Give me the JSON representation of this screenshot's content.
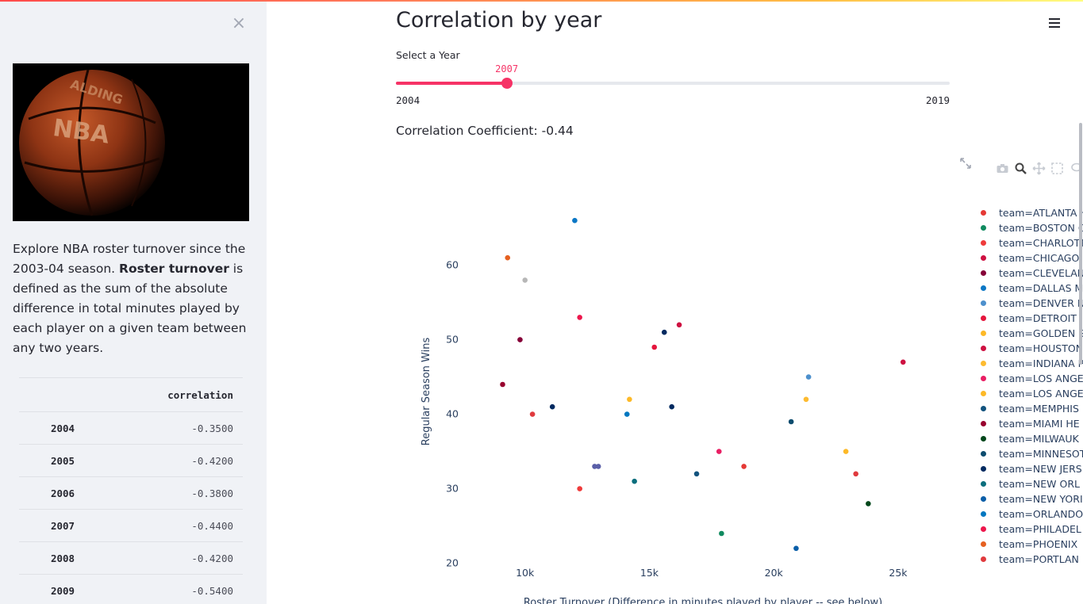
{
  "sidebar": {
    "close_label": "×",
    "intro_part1": "Explore NBA roster turnover since the 2003-04 season. ",
    "intro_bold": "Roster turnover",
    "intro_part2": " is defined as the sum of the absolute difference in total minutes played by each player on a given team between any two years.",
    "table": {
      "column": "correlation",
      "rows": [
        {
          "year": "2004",
          "value": "-0.3500"
        },
        {
          "year": "2005",
          "value": "-0.4200"
        },
        {
          "year": "2006",
          "value": "-0.3800"
        },
        {
          "year": "2007",
          "value": "-0.4400"
        },
        {
          "year": "2008",
          "value": "-0.4200"
        },
        {
          "year": "2009",
          "value": "-0.5400"
        }
      ]
    }
  },
  "main": {
    "title": "Correlation by year",
    "slider": {
      "label": "Select a Year",
      "value": "2007",
      "min": "2004",
      "max": "2019",
      "fraction": 0.2
    },
    "correlation_text": "Correlation Coefficient: -0.44"
  },
  "colors": {
    "accent": "#f63366",
    "sidebar_bg": "#f0f2f6"
  },
  "icons": [
    "close-icon",
    "menu-icon",
    "fullscreen-icon",
    "camera-icon",
    "zoom-icon",
    "pan-icon",
    "box-select-icon",
    "lasso-icon"
  ],
  "chart_data": {
    "type": "scatter",
    "xlabel": "Roster Turnover (Difference in minutes played by player -- see below)",
    "ylabel": "Regular Season Wins",
    "xlim": [
      8000,
      26500
    ],
    "ylim": [
      19,
      69
    ],
    "xticks": [
      {
        "v": 10000,
        "label": "10k"
      },
      {
        "v": 15000,
        "label": "15k"
      },
      {
        "v": 20000,
        "label": "20k"
      },
      {
        "v": 25000,
        "label": "25k"
      }
    ],
    "yticks": [
      20,
      30,
      40,
      50,
      60
    ],
    "grid": false,
    "legend_position": "right",
    "series": [
      {
        "name": "team=ATLANTA H",
        "color": "#e53935",
        "points": [
          [
            18800,
            33
          ]
        ]
      },
      {
        "name": "team=BOSTON C",
        "color": "#0f8a5f",
        "points": [
          [
            17900,
            24
          ]
        ]
      },
      {
        "name": "team=CHARLOTT",
        "color": "#ef3b3b",
        "points": [
          [
            12200,
            30
          ]
        ]
      },
      {
        "name": "team=CHICAGO",
        "color": "#ce1141",
        "points": [
          [
            16200,
            52
          ]
        ]
      },
      {
        "name": "team=CLEVELAN",
        "color": "#860038",
        "points": [
          [
            9800,
            50
          ]
        ]
      },
      {
        "name": "team=DALLAS M",
        "color": "#0b77c5",
        "points": [
          [
            12000,
            66
          ]
        ]
      },
      {
        "name": "team=DENVER N",
        "color": "#4d90cd",
        "points": [
          [
            21400,
            45
          ]
        ]
      },
      {
        "name": "team=DETROIT",
        "color": "#e5163d",
        "points": [
          [
            15200,
            49
          ]
        ]
      },
      {
        "name": "team=GOLDEN S",
        "color": "#fdb927",
        "points": [
          [
            22900,
            35
          ]
        ]
      },
      {
        "name": "team=HOUSTON",
        "color": "#ce1141",
        "points": [
          [
            25200,
            47
          ]
        ]
      },
      {
        "name": "team=INDIANA P",
        "color": "#fdbb30",
        "points": [
          [
            21300,
            42
          ]
        ]
      },
      {
        "name": "team=LOS ANGE",
        "color": "#e91e63",
        "points": [
          [
            17800,
            35
          ]
        ]
      },
      {
        "name": "team=LOS ANGE",
        "color": "#fdb927",
        "points": [
          [
            14200,
            42
          ]
        ]
      },
      {
        "name": "team=MEMPHIS",
        "color": "#12537e",
        "points": [
          [
            16900,
            32
          ]
        ]
      },
      {
        "name": "team=MIAMI HE",
        "color": "#98002e",
        "points": [
          [
            9100,
            44
          ]
        ]
      },
      {
        "name": "team=MILWAUK",
        "color": "#00471b",
        "points": [
          [
            23800,
            28
          ]
        ]
      },
      {
        "name": "team=MINNESOT",
        "color": "#0c4c6e",
        "points": [
          [
            20700,
            39
          ]
        ]
      },
      {
        "name": "team=NEW JERS",
        "color": "#002a60",
        "points": [
          [
            15600,
            51
          ],
          [
            15900,
            41
          ],
          [
            11100,
            41
          ]
        ]
      },
      {
        "name": "team=NEW ORL",
        "color": "#0a6e7d",
        "points": [
          [
            14400,
            31
          ]
        ]
      },
      {
        "name": "team=NEW YORI",
        "color": "#0a5ea8",
        "points": [
          [
            20900,
            22
          ]
        ]
      },
      {
        "name": "team=ORLANDO",
        "color": "#0077c0",
        "points": [
          [
            14100,
            40
          ]
        ]
      },
      {
        "name": "team=PHILADEL",
        "color": "#ed174c",
        "points": [
          [
            12200,
            53
          ]
        ]
      },
      {
        "name": "team=PHOENIX",
        "color": "#e56020",
        "points": [
          [
            9300,
            61
          ]
        ]
      },
      {
        "name": "team=PORTLAN",
        "color": "#e03a3e",
        "points": [
          [
            10300,
            40
          ],
          [
            23300,
            32
          ]
        ]
      },
      {
        "name": "",
        "color": "#b7b7b7",
        "points": [
          [
            10000,
            58
          ]
        ]
      },
      {
        "name": "",
        "color": "#5a5fa8",
        "points": [
          [
            12800,
            33
          ],
          [
            12950,
            33
          ]
        ]
      }
    ]
  }
}
